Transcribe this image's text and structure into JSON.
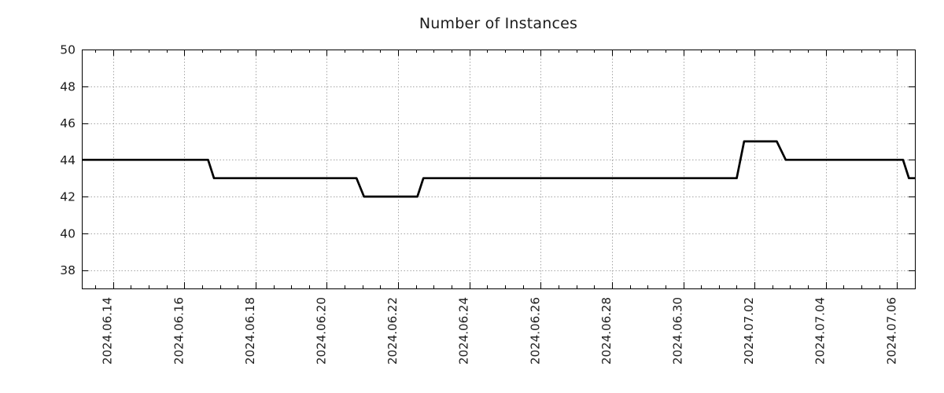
{
  "page": {
    "background": "#ffffff"
  },
  "chart_data": {
    "type": "line",
    "title": "Number of Instances",
    "xlabel": "",
    "ylabel": "",
    "legend": "none",
    "grid": true,
    "line_color": "#000000",
    "grid_color": "#a6a6a6",
    "axis_color": "#000000",
    "text_color": "#1c1c1c",
    "ylim": [
      37,
      50
    ],
    "y_ticks": [
      38,
      40,
      42,
      44,
      46,
      48,
      50
    ],
    "xlim": [
      "2024-06-13 03:00",
      "2024-07-06 12:00"
    ],
    "x_minor_interval_hours": 12,
    "x_ticks": [
      {
        "date": "2024-06-14 00:00",
        "label": "2024.06.14"
      },
      {
        "date": "2024-06-16 00:00",
        "label": "2024.06.16"
      },
      {
        "date": "2024-06-18 00:00",
        "label": "2024.06.18"
      },
      {
        "date": "2024-06-20 00:00",
        "label": "2024.06.20"
      },
      {
        "date": "2024-06-22 00:00",
        "label": "2024.06.22"
      },
      {
        "date": "2024-06-24 00:00",
        "label": "2024.06.24"
      },
      {
        "date": "2024-06-26 00:00",
        "label": "2024.06.26"
      },
      {
        "date": "2024-06-28 00:00",
        "label": "2024.06.28"
      },
      {
        "date": "2024-06-30 00:00",
        "label": "2024.06.30"
      },
      {
        "date": "2024-07-02 00:00",
        "label": "2024.07.02"
      },
      {
        "date": "2024-07-04 00:00",
        "label": "2024.07.04"
      },
      {
        "date": "2024-07-06 00:00",
        "label": "2024.07.06"
      }
    ],
    "series": [
      {
        "name": "instances",
        "points": [
          [
            "2024-06-13 03:00",
            44
          ],
          [
            "2024-06-16 16:00",
            44
          ],
          [
            "2024-06-16 20:00",
            43
          ],
          [
            "2024-06-20 20:00",
            43
          ],
          [
            "2024-06-21 01:00",
            42
          ],
          [
            "2024-06-22 13:00",
            42
          ],
          [
            "2024-06-22 17:00",
            43
          ],
          [
            "2024-07-01 12:00",
            43
          ],
          [
            "2024-07-01 17:00",
            45
          ],
          [
            "2024-07-02 15:00",
            45
          ],
          [
            "2024-07-02 21:00",
            44
          ],
          [
            "2024-07-06 04:00",
            44
          ],
          [
            "2024-07-06 08:00",
            43
          ],
          [
            "2024-07-06 12:00",
            43
          ]
        ]
      }
    ]
  }
}
